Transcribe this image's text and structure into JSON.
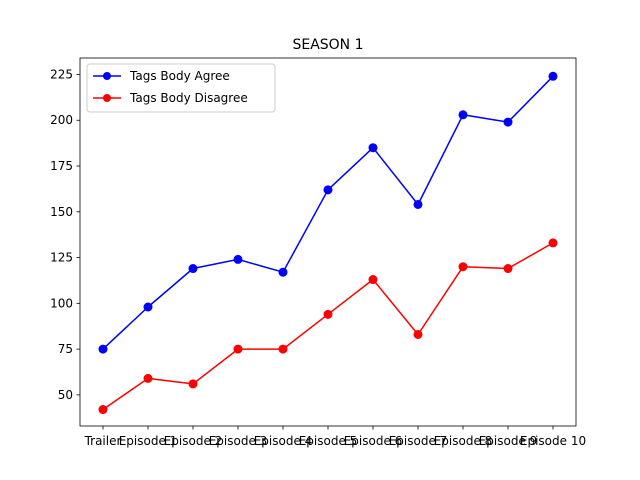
{
  "chart_data": {
    "type": "line",
    "title": "SEASON 1",
    "xlabel": "",
    "ylabel": "",
    "categories": [
      "Trailer",
      "Episode 1",
      "Episode 2",
      "Episode 3",
      "Episode 4",
      "Episode 5",
      "Episode 6",
      "Episode 7",
      "Episode 8",
      "Episode 9",
      "Episode 10"
    ],
    "series": [
      {
        "name": "Tags Body Agree",
        "color": "#0000ff",
        "values": [
          75,
          98,
          119,
          124,
          117,
          162,
          185,
          154,
          203,
          199,
          224
        ]
      },
      {
        "name": "Tags Body Disagree",
        "color": "#ff0000",
        "values": [
          42,
          59,
          56,
          75,
          75,
          94,
          113,
          83,
          120,
          119,
          133
        ]
      }
    ],
    "ylim": [
      33,
      234
    ],
    "yticks": [
      50,
      75,
      100,
      125,
      150,
      175,
      200,
      225
    ],
    "grid": false,
    "legend_position": "upper-left",
    "marker": "circle"
  }
}
